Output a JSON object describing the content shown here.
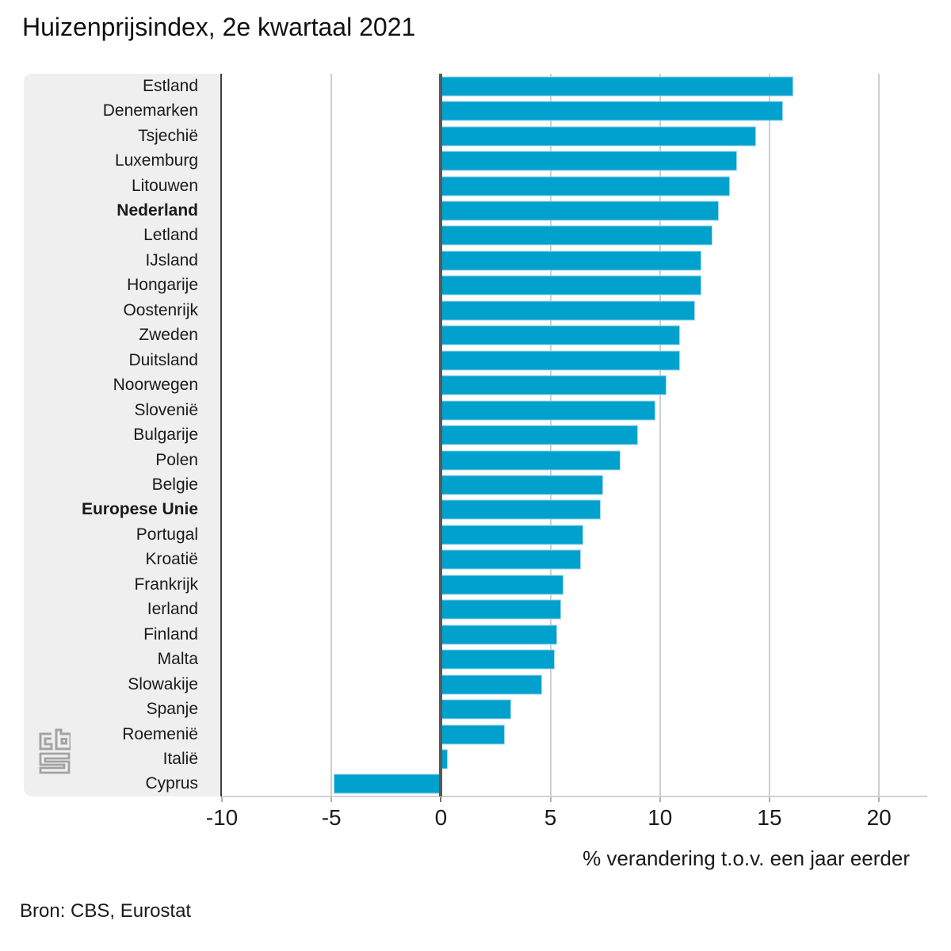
{
  "title": "Huizenprijsindex, 2e kwartaal 2021",
  "source": "Bron: CBS, Eurostat",
  "logo_name": "cbs-logo",
  "colors": {
    "bar": "#00a1cd",
    "bar_edge": "#9ed7e9",
    "panel_bg": "#efefef",
    "axis_line": "#3f3f3f",
    "zero_line": "#58585a",
    "gridline": "#cfcfcf",
    "tick": "#b0b0b0",
    "text": "#1a1a1a",
    "logo": "#a3a3a3"
  },
  "chart_data": {
    "type": "bar",
    "orientation": "horizontal",
    "title": "Huizenprijsindex, 2e kwartaal 2021",
    "xlabel": "% verandering t.o.v. een jaar eerder",
    "unit": "%",
    "xlim": [
      -10,
      22.2
    ],
    "xticks": [
      -10,
      -5,
      0,
      5,
      10,
      15,
      20
    ],
    "xtick_labels": [
      "-10",
      "-5",
      "0",
      "5",
      "10",
      "15",
      "20"
    ],
    "grid": true,
    "legend": false,
    "categories": [
      "Estland",
      "Denemarken",
      "Tsjechië",
      "Luxemburg",
      "Litouwen",
      "Nederland",
      "Letland",
      "IJsland",
      "Hongarije",
      "Oostenrijk",
      "Zweden",
      "Duitsland",
      "Noorwegen",
      "Slovenië",
      "Bulgarije",
      "Polen",
      "Belgie",
      "Europese Unie",
      "Portugal",
      "Kroatië",
      "Frankrijk",
      "Ierland",
      "Finland",
      "Malta",
      "Slowakije",
      "Spanje",
      "Roemenië",
      "Italië",
      "Cyprus"
    ],
    "values": [
      16.1,
      15.6,
      14.4,
      13.5,
      13.2,
      12.7,
      12.4,
      11.9,
      11.9,
      11.6,
      10.9,
      10.9,
      10.3,
      9.8,
      9.0,
      8.2,
      7.4,
      7.3,
      6.5,
      6.4,
      5.6,
      5.5,
      5.3,
      5.2,
      4.6,
      3.2,
      2.9,
      0.3,
      -4.9
    ],
    "bold_categories": [
      "Nederland",
      "Europese Unie"
    ]
  }
}
